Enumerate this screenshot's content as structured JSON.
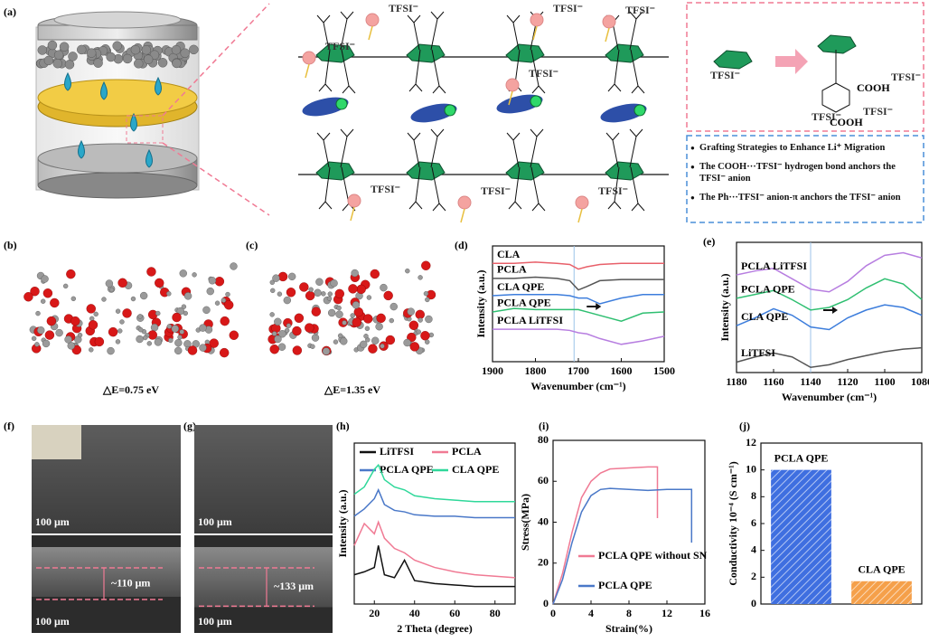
{
  "figure": {
    "a": {
      "label": "(a)",
      "tfsi": [
        "TFSI⁻",
        "TFSI⁻",
        "TFSI⁻",
        "TFSI⁻",
        "TFSI⁻",
        "TFSI⁻",
        "TFSI⁻",
        "TFSI⁻"
      ],
      "scheme_tfsi": [
        "TFSI⁻",
        "TFSI⁻",
        "TFSI⁻",
        "TFSI⁻"
      ],
      "cooh": [
        "COOH",
        "COOH"
      ],
      "bullets": [
        "Grafting Strategies to Enhance Li⁺ Migration",
        "The COOH···TFSI⁻ hydrogen bond anchors the TFSI⁻ anion",
        "The Ph···TFSI⁻ anion-π anchors the TFSI⁻ anion"
      ]
    },
    "b": {
      "label": "(b)",
      "energy": "△E=0.75 eV"
    },
    "c": {
      "label": "(c)",
      "energy": "△E=1.35 eV"
    },
    "f": {
      "label": "(f)",
      "scale_bars": [
        "100 μm",
        "100 μm"
      ],
      "thickness": "~110 μm"
    },
    "g": {
      "label": "(g)",
      "scale_bars": [
        "100 μm",
        "100 μm"
      ],
      "thickness": "~133 μm"
    }
  },
  "chart_data": [
    {
      "type": "line",
      "label": "(d)",
      "xlabel": "Wavenumber (cm⁻¹)",
      "ylabel": "Intensity (a.u.)",
      "x": [
        1900,
        1850,
        1800,
        1750,
        1720,
        1700,
        1680,
        1650,
        1600,
        1550,
        1500
      ],
      "xlim": [
        1900,
        1500
      ],
      "xticks": [
        1900,
        1800,
        1700,
        1600,
        1500
      ],
      "ylim": [
        0,
        10
      ],
      "marker_x": 1710,
      "series": [
        {
          "name": "CLA",
          "color": "#e8606a",
          "values": [
            8.5,
            8.5,
            8.6,
            8.5,
            8.4,
            8.0,
            8.2,
            8.4,
            8.5,
            8.5,
            8.5
          ]
        },
        {
          "name": "PCLA",
          "color": "#555555",
          "values": [
            7.2,
            7.2,
            7.3,
            7.2,
            7.0,
            6.2,
            6.5,
            7.0,
            7.1,
            7.1,
            7.1
          ]
        },
        {
          "name": "CLA QPE",
          "color": "#3c7ddc",
          "values": [
            5.7,
            5.8,
            5.8,
            5.8,
            5.7,
            5.5,
            5.5,
            5.0,
            5.5,
            5.8,
            5.8
          ]
        },
        {
          "name": "PCLA QPE",
          "color": "#2fbf71",
          "values": [
            4.3,
            4.6,
            4.5,
            4.5,
            4.5,
            4.5,
            4.3,
            4.0,
            3.5,
            4.2,
            4.3
          ]
        },
        {
          "name": "PCLA LiTFSI",
          "color": "#b77ee0",
          "values": [
            2.8,
            2.8,
            2.8,
            2.8,
            2.7,
            2.5,
            2.4,
            2.0,
            1.5,
            1.8,
            2.2
          ]
        }
      ]
    },
    {
      "type": "line",
      "label": "(e)",
      "xlabel": "Wavenumber (cm⁻¹)",
      "ylabel": "Intensity (a.u.)",
      "x": [
        1180,
        1170,
        1160,
        1150,
        1140,
        1130,
        1120,
        1110,
        1100,
        1090,
        1080
      ],
      "xlim": [
        1180,
        1080
      ],
      "xticks": [
        1180,
        1160,
        1140,
        1120,
        1100,
        1080
      ],
      "ylim": [
        0,
        10
      ],
      "marker_x": 1140,
      "series": [
        {
          "name": "PCLA LiTFSI",
          "color": "#b77ee0",
          "values": [
            7.5,
            7.8,
            8.0,
            7.2,
            6.4,
            6.2,
            7.0,
            8.2,
            9.0,
            9.2,
            8.8
          ]
        },
        {
          "name": "PCLA QPE",
          "color": "#2fbf71",
          "values": [
            5.7,
            6.0,
            6.3,
            5.6,
            4.8,
            5.0,
            5.6,
            6.5,
            7.2,
            6.8,
            5.6
          ]
        },
        {
          "name": "CLA QPE",
          "color": "#3c7ddc",
          "values": [
            3.6,
            4.2,
            4.9,
            4.4,
            3.5,
            3.3,
            4.2,
            4.8,
            5.2,
            5.0,
            4.4
          ]
        },
        {
          "name": "LiTFSI",
          "color": "#555555",
          "values": [
            0.8,
            1.2,
            1.5,
            1.2,
            0.4,
            0.6,
            1.0,
            1.3,
            1.6,
            1.8,
            1.9
          ]
        }
      ]
    },
    {
      "type": "line",
      "label": "(h)",
      "xlabel": "2 Theta (degree)",
      "ylabel": "Intensity (a.u.)",
      "x": [
        10,
        15,
        20,
        22,
        25,
        30,
        35,
        40,
        50,
        60,
        70,
        80,
        90
      ],
      "xlim": [
        10,
        90
      ],
      "xticks": [
        20,
        40,
        60,
        80
      ],
      "ylim": [
        0,
        11
      ],
      "series": [
        {
          "name": "LiTFSI",
          "color": "#111111",
          "values": [
            2.0,
            2.2,
            2.5,
            4.0,
            2.0,
            1.8,
            3.0,
            1.6,
            1.4,
            1.3,
            1.2,
            1.2,
            1.2
          ]
        },
        {
          "name": "PCLA",
          "color": "#f07a94",
          "values": [
            4.0,
            5.5,
            4.8,
            5.6,
            4.5,
            3.8,
            3.5,
            3.0,
            2.5,
            2.2,
            2.0,
            1.9,
            1.8
          ]
        },
        {
          "name": "PCLA QPE",
          "color": "#4a78c8",
          "values": [
            6.0,
            6.5,
            7.2,
            7.8,
            6.8,
            6.4,
            6.3,
            6.1,
            6.0,
            6.0,
            5.9,
            5.9,
            5.9
          ]
        },
        {
          "name": "CLA QPE",
          "color": "#2fd89a",
          "values": [
            7.5,
            8.0,
            9.2,
            9.5,
            8.5,
            8.0,
            7.8,
            7.4,
            7.2,
            7.1,
            7.0,
            7.0,
            7.0
          ]
        }
      ]
    },
    {
      "type": "line",
      "label": "(i)",
      "xlabel": "Strain(%)",
      "ylabel": "Stress(MPa)",
      "xlim": [
        0,
        16
      ],
      "xticks": [
        0,
        4,
        8,
        12,
        16
      ],
      "ylim": [
        0,
        80
      ],
      "yticks": [
        0,
        20,
        40,
        60,
        80
      ],
      "series": [
        {
          "name": "PCLA QPE without SN",
          "color": "#f07a94",
          "x": [
            0,
            1,
            2,
            3,
            4,
            5,
            6,
            8,
            10,
            11,
            11
          ],
          "values": [
            0,
            15,
            35,
            52,
            60,
            64,
            66,
            66.5,
            67,
            67,
            42
          ]
        },
        {
          "name": "PCLA QPE",
          "color": "#4a78c8",
          "x": [
            0,
            1,
            2,
            3,
            4,
            5,
            6,
            8,
            10,
            12,
            14.6,
            14.6
          ],
          "values": [
            0,
            12,
            30,
            45,
            53,
            56,
            56.5,
            56,
            55.5,
            56,
            56,
            30
          ]
        }
      ]
    },
    {
      "type": "bar",
      "label": "(j)",
      "ylabel": "Conductivity 10⁻⁴ (S cm⁻¹)",
      "categories": [
        "PCLA QPE",
        "CLA QPE"
      ],
      "values": [
        10.0,
        1.7
      ],
      "colors": [
        "#3f6fe0",
        "#f5a04a"
      ],
      "ylim": [
        0,
        12
      ],
      "yticks": [
        0,
        2,
        4,
        6,
        8,
        10,
        12
      ]
    }
  ]
}
